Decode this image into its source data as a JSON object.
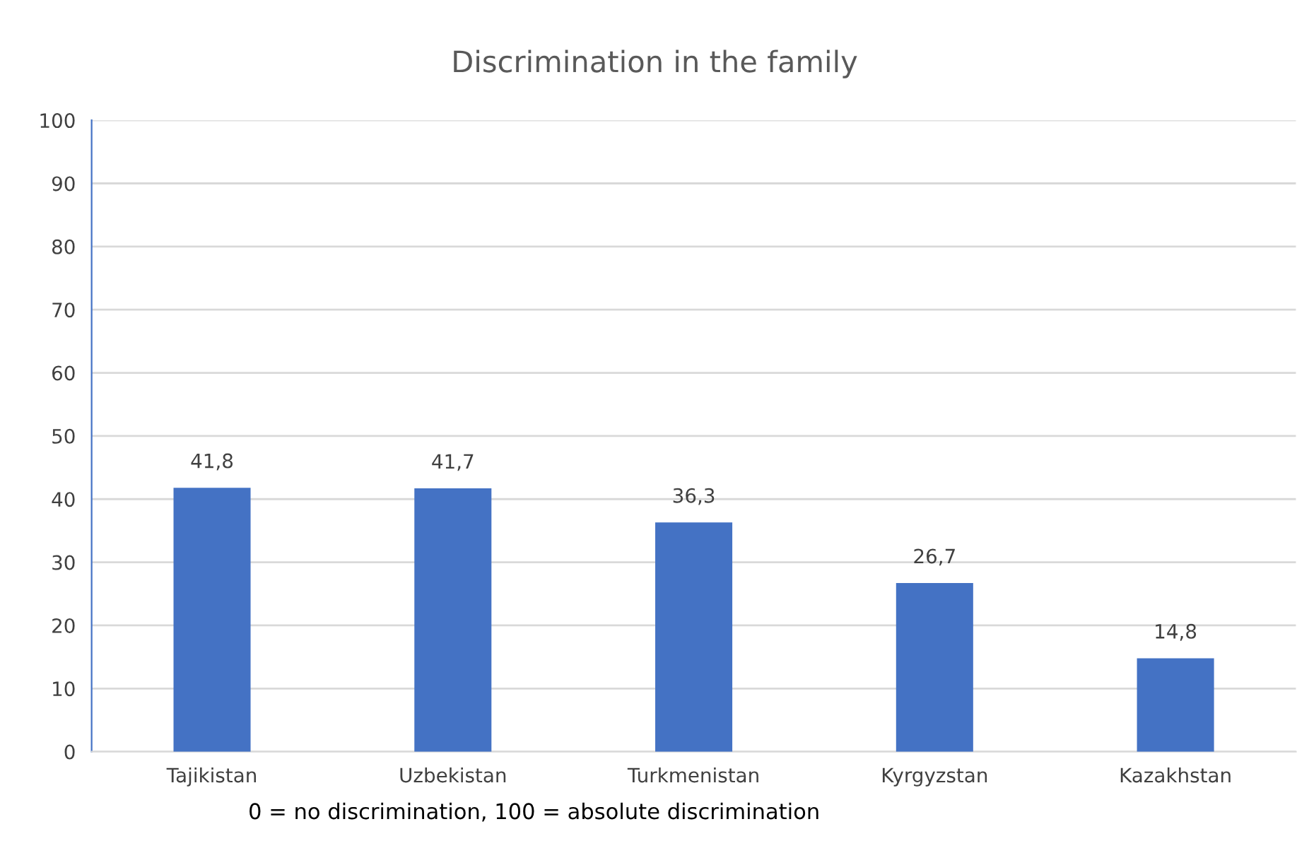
{
  "chart_data": {
    "type": "bar",
    "title": "Discrimination in the family",
    "categories": [
      "Tajikistan",
      "Uzbekistan",
      "Turkmenistan",
      "Kyrgyzstan",
      "Kazakhstan"
    ],
    "values": [
      41.8,
      41.7,
      36.3,
      26.7,
      14.8
    ],
    "value_labels": [
      "41,8",
      "41,7",
      "36,3",
      "26,7",
      "14,8"
    ],
    "color": "#4472c4",
    "ylim": [
      0,
      100
    ],
    "yticks": [
      0,
      10,
      20,
      30,
      40,
      50,
      60,
      70,
      80,
      90,
      100
    ],
    "grid": "y",
    "annotations": [
      "0 = no discrimination, 100 = absolute discrimination"
    ]
  }
}
